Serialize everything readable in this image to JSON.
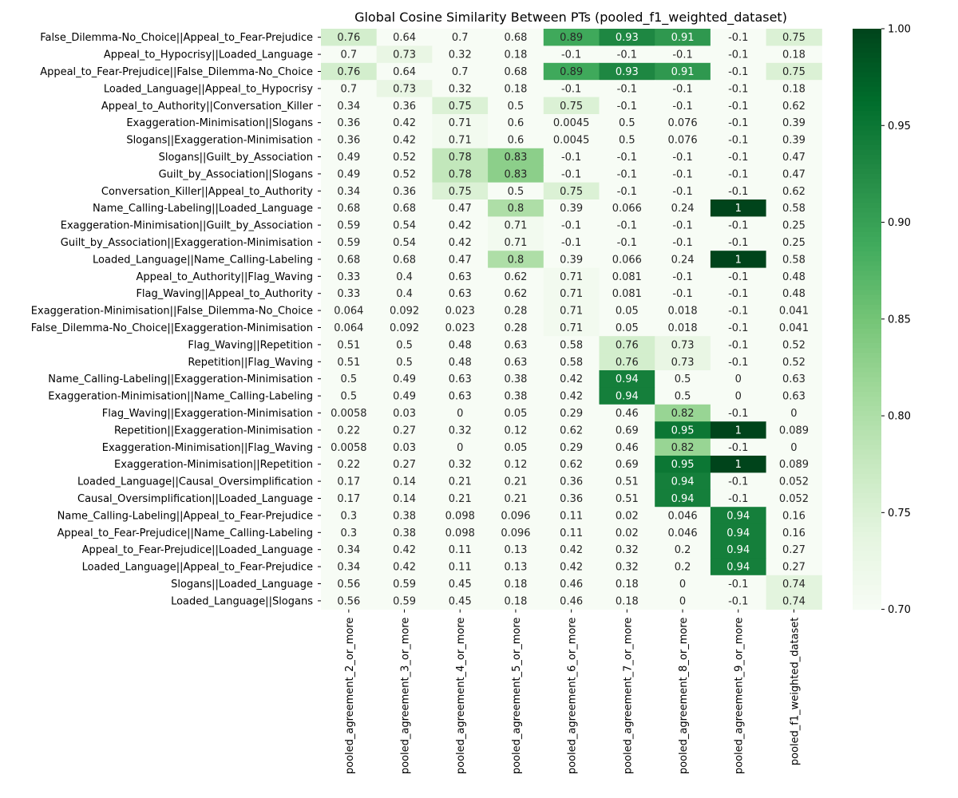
{
  "chart_data": {
    "type": "heatmap",
    "title": "Global Cosine Similarity Between PTs (pooled_f1_weighted_dataset)",
    "columns": [
      "pooled_agreement_2_or_more",
      "pooled_agreement_3_or_more",
      "pooled_agreement_4_or_more",
      "pooled_agreement_5_or_more",
      "pooled_agreement_6_or_more",
      "pooled_agreement_7_or_more",
      "pooled_agreement_8_or_more",
      "pooled_agreement_9_or_more",
      "pooled_f1_weighted_dataset"
    ],
    "rows": [
      "False_Dilemma-No_Choice||Appeal_to_Fear-Prejudice",
      "Appeal_to_Hypocrisy||Loaded_Language",
      "Appeal_to_Fear-Prejudice||False_Dilemma-No_Choice",
      "Loaded_Language||Appeal_to_Hypocrisy",
      "Appeal_to_Authority||Conversation_Killer",
      "Exaggeration-Minimisation||Slogans",
      "Slogans||Exaggeration-Minimisation",
      "Slogans||Guilt_by_Association",
      "Guilt_by_Association||Slogans",
      "Conversation_Killer||Appeal_to_Authority",
      "Name_Calling-Labeling||Loaded_Language",
      "Exaggeration-Minimisation||Guilt_by_Association",
      "Guilt_by_Association||Exaggeration-Minimisation",
      "Loaded_Language||Name_Calling-Labeling",
      "Appeal_to_Authority||Flag_Waving",
      "Flag_Waving||Appeal_to_Authority",
      "Exaggeration-Minimisation||False_Dilemma-No_Choice",
      "False_Dilemma-No_Choice||Exaggeration-Minimisation",
      "Flag_Waving||Repetition",
      "Repetition||Flag_Waving",
      "Name_Calling-Labeling||Exaggeration-Minimisation",
      "Exaggeration-Minimisation||Name_Calling-Labeling",
      "Flag_Waving||Exaggeration-Minimisation",
      "Repetition||Exaggeration-Minimisation",
      "Exaggeration-Minimisation||Flag_Waving",
      "Exaggeration-Minimisation||Repetition",
      "Loaded_Language||Causal_Oversimplification",
      "Causal_Oversimplification||Loaded_Language",
      "Name_Calling-Labeling||Appeal_to_Fear-Prejudice",
      "Appeal_to_Fear-Prejudice||Name_Calling-Labeling",
      "Appeal_to_Fear-Prejudice||Loaded_Language",
      "Loaded_Language||Appeal_to_Fear-Prejudice",
      "Slogans||Loaded_Language",
      "Loaded_Language||Slogans"
    ],
    "values": [
      [
        0.76,
        0.64,
        0.7,
        0.68,
        0.89,
        0.93,
        0.91,
        -0.1,
        0.75
      ],
      [
        0.7,
        0.73,
        0.32,
        0.18,
        -0.1,
        -0.1,
        -0.1,
        -0.1,
        0.18
      ],
      [
        0.76,
        0.64,
        0.7,
        0.68,
        0.89,
        0.93,
        0.91,
        -0.1,
        0.75
      ],
      [
        0.7,
        0.73,
        0.32,
        0.18,
        -0.1,
        -0.1,
        -0.1,
        -0.1,
        0.18
      ],
      [
        0.34,
        0.36,
        0.75,
        0.5,
        0.75,
        -0.1,
        -0.1,
        -0.1,
        0.62
      ],
      [
        0.36,
        0.42,
        0.71,
        0.6,
        0.0045,
        0.5,
        0.076,
        -0.1,
        0.39
      ],
      [
        0.36,
        0.42,
        0.71,
        0.6,
        0.0045,
        0.5,
        0.076,
        -0.1,
        0.39
      ],
      [
        0.49,
        0.52,
        0.78,
        0.83,
        -0.1,
        -0.1,
        -0.1,
        -0.1,
        0.47
      ],
      [
        0.49,
        0.52,
        0.78,
        0.83,
        -0.1,
        -0.1,
        -0.1,
        -0.1,
        0.47
      ],
      [
        0.34,
        0.36,
        0.75,
        0.5,
        0.75,
        -0.1,
        -0.1,
        -0.1,
        0.62
      ],
      [
        0.68,
        0.68,
        0.47,
        0.8,
        0.39,
        0.066,
        0.24,
        1,
        0.58
      ],
      [
        0.59,
        0.54,
        0.42,
        0.71,
        -0.1,
        -0.1,
        -0.1,
        -0.1,
        0.25
      ],
      [
        0.59,
        0.54,
        0.42,
        0.71,
        -0.1,
        -0.1,
        -0.1,
        -0.1,
        0.25
      ],
      [
        0.68,
        0.68,
        0.47,
        0.8,
        0.39,
        0.066,
        0.24,
        1,
        0.58
      ],
      [
        0.33,
        0.4,
        0.63,
        0.62,
        0.71,
        0.081,
        -0.1,
        -0.1,
        0.48
      ],
      [
        0.33,
        0.4,
        0.63,
        0.62,
        0.71,
        0.081,
        -0.1,
        -0.1,
        0.48
      ],
      [
        0.064,
        0.092,
        0.023,
        0.28,
        0.71,
        0.05,
        0.018,
        -0.1,
        0.041
      ],
      [
        0.064,
        0.092,
        0.023,
        0.28,
        0.71,
        0.05,
        0.018,
        -0.1,
        0.041
      ],
      [
        0.51,
        0.5,
        0.48,
        0.63,
        0.58,
        0.76,
        0.73,
        -0.1,
        0.52
      ],
      [
        0.51,
        0.5,
        0.48,
        0.63,
        0.58,
        0.76,
        0.73,
        -0.1,
        0.52
      ],
      [
        0.5,
        0.49,
        0.63,
        0.38,
        0.42,
        0.94,
        0.5,
        0,
        0.63
      ],
      [
        0.5,
        0.49,
        0.63,
        0.38,
        0.42,
        0.94,
        0.5,
        0,
        0.63
      ],
      [
        0.0058,
        0.03,
        0,
        0.05,
        0.29,
        0.46,
        0.82,
        -0.1,
        0
      ],
      [
        0.22,
        0.27,
        0.32,
        0.12,
        0.62,
        0.69,
        0.95,
        1,
        0.089
      ],
      [
        0.0058,
        0.03,
        0,
        0.05,
        0.29,
        0.46,
        0.82,
        -0.1,
        0
      ],
      [
        0.22,
        0.27,
        0.32,
        0.12,
        0.62,
        0.69,
        0.95,
        1,
        0.089
      ],
      [
        0.17,
        0.14,
        0.21,
        0.21,
        0.36,
        0.51,
        0.94,
        -0.1,
        0.052
      ],
      [
        0.17,
        0.14,
        0.21,
        0.21,
        0.36,
        0.51,
        0.94,
        -0.1,
        0.052
      ],
      [
        0.3,
        0.38,
        0.098,
        0.096,
        0.11,
        0.02,
        0.046,
        0.94,
        0.16
      ],
      [
        0.3,
        0.38,
        0.098,
        0.096,
        0.11,
        0.02,
        0.046,
        0.94,
        0.16
      ],
      [
        0.34,
        0.42,
        0.11,
        0.13,
        0.42,
        0.32,
        0.2,
        0.94,
        0.27
      ],
      [
        0.34,
        0.42,
        0.11,
        0.13,
        0.42,
        0.32,
        0.2,
        0.94,
        0.27
      ],
      [
        0.56,
        0.59,
        0.45,
        0.18,
        0.46,
        0.18,
        0,
        -0.1,
        0.74
      ],
      [
        0.56,
        0.59,
        0.45,
        0.18,
        0.46,
        0.18,
        0,
        -0.1,
        0.74
      ]
    ],
    "colorbar": {
      "vmin": 0.7,
      "vmax": 1.0,
      "ticks": [
        0.7,
        0.75,
        0.8,
        0.85,
        0.9,
        0.95,
        1.0
      ],
      "tick_labels": [
        "0.70",
        "0.75",
        "0.80",
        "0.85",
        "0.90",
        "0.95",
        "1.00"
      ],
      "colormap": "Greens",
      "color_low": "#f7fcf5",
      "color_high": "#00441b"
    },
    "annotated": true,
    "grid": false
  }
}
